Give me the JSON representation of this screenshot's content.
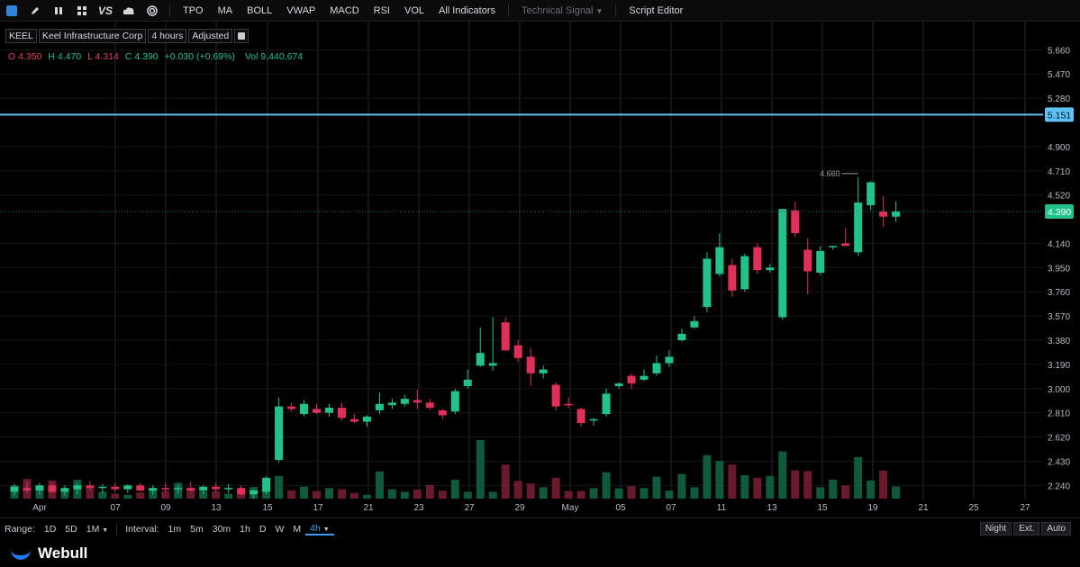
{
  "toolbar": {
    "icons": [
      "chart-type-icon",
      "pencil-icon",
      "candles-icon",
      "grid-icon",
      "vs-icon",
      "cloud-icon",
      "target-icon"
    ],
    "vs_label": "VS",
    "items": [
      "TPO",
      "MA",
      "BOLL",
      "VWAP",
      "MACD",
      "RSI",
      "VOL",
      "All Indicators"
    ],
    "technical_signal": "Technical Signal",
    "script_editor": "Script Editor"
  },
  "symbol": {
    "ticker": "KEEL",
    "name": "Keel Infrastructure Corp",
    "interval": "4 hours",
    "adjust": "Adjusted"
  },
  "ohlc": {
    "o_label": "O",
    "o": "4.350",
    "h_label": "H",
    "h": "4.470",
    "l_label": "L",
    "l": "4.314",
    "c_label": "C",
    "c": "4.390",
    "change": "+0.030 (+0.69%)",
    "vol_label": "Vol",
    "vol": "9,440,674"
  },
  "colors": {
    "up": "#21c38a",
    "down": "#e0305a",
    "up_volume": "#0f5a3a",
    "down_volume": "#6a1a2c",
    "price_line": "#5fc2f5",
    "background": "#000000",
    "grid": "#2a2a2a"
  },
  "chart_data": {
    "type": "candlestick",
    "y_axis_ticks": [
      "5.660",
      "5.470",
      "5.280",
      "4.900",
      "4.710",
      "4.520",
      "4.140",
      "3.950",
      "3.760",
      "3.570",
      "3.380",
      "3.190",
      "3.000",
      "2.810",
      "2.620",
      "2.430",
      "2.240"
    ],
    "ylim": [
      2.2,
      5.74
    ],
    "x_axis_ticks": [
      "Apr",
      "07",
      "09",
      "13",
      "15",
      "17",
      "21",
      "23",
      "27",
      "29",
      "May",
      "05",
      "07",
      "11",
      "13",
      "15",
      "19",
      "21",
      "25",
      "27"
    ],
    "horizontal_line": {
      "value": 5.151,
      "label": "5.151"
    },
    "last_price": {
      "value": 4.39,
      "label": "4.390"
    },
    "high_marker": {
      "value": 4.66,
      "label": "4.660"
    },
    "candles": [
      {
        "o": 2.19,
        "h": 2.25,
        "l": 2.16,
        "c": 2.23,
        "v": 0.35
      },
      {
        "o": 2.22,
        "h": 2.27,
        "l": 2.18,
        "c": 2.2,
        "v": 0.52
      },
      {
        "o": 2.2,
        "h": 2.26,
        "l": 2.17,
        "c": 2.24,
        "v": 0.28
      },
      {
        "o": 2.24,
        "h": 2.26,
        "l": 2.18,
        "c": 2.19,
        "v": 0.48
      },
      {
        "o": 2.19,
        "h": 2.24,
        "l": 2.16,
        "c": 2.22,
        "v": 0.22
      },
      {
        "o": 2.21,
        "h": 2.26,
        "l": 2.17,
        "c": 2.24,
        "v": 0.5
      },
      {
        "o": 2.24,
        "h": 2.27,
        "l": 2.2,
        "c": 2.22,
        "v": 0.28
      },
      {
        "o": 2.22,
        "h": 2.25,
        "l": 2.18,
        "c": 2.23,
        "v": 0.18
      },
      {
        "o": 2.23,
        "h": 2.26,
        "l": 2.19,
        "c": 2.21,
        "v": 0.13
      },
      {
        "o": 2.21,
        "h": 2.25,
        "l": 2.18,
        "c": 2.24,
        "v": 0.1
      },
      {
        "o": 2.24,
        "h": 2.26,
        "l": 2.19,
        "c": 2.2,
        "v": 0.16
      },
      {
        "o": 2.2,
        "h": 2.24,
        "l": 2.17,
        "c": 2.22,
        "v": 0.25
      },
      {
        "o": 2.22,
        "h": 2.26,
        "l": 2.19,
        "c": 2.21,
        "v": 0.2
      },
      {
        "o": 2.21,
        "h": 2.24,
        "l": 2.18,
        "c": 2.22,
        "v": 0.42
      },
      {
        "o": 2.22,
        "h": 2.27,
        "l": 2.19,
        "c": 2.2,
        "v": 0.27
      },
      {
        "o": 2.2,
        "h": 2.24,
        "l": 2.17,
        "c": 2.23,
        "v": 0.2
      },
      {
        "o": 2.23,
        "h": 2.26,
        "l": 2.19,
        "c": 2.21,
        "v": 0.2
      },
      {
        "o": 2.21,
        "h": 2.25,
        "l": 2.18,
        "c": 2.22,
        "v": 0.13
      },
      {
        "o": 2.22,
        "h": 2.24,
        "l": 2.16,
        "c": 2.17,
        "v": 0.18
      },
      {
        "o": 2.17,
        "h": 2.21,
        "l": 2.14,
        "c": 2.2,
        "v": 0.31
      },
      {
        "o": 2.19,
        "h": 2.31,
        "l": 2.17,
        "c": 2.3,
        "v": 0.27
      },
      {
        "o": 2.44,
        "h": 2.93,
        "l": 2.42,
        "c": 2.86,
        "v": 0.6
      },
      {
        "o": 2.86,
        "h": 2.89,
        "l": 2.82,
        "c": 2.84,
        "v": 0.22
      },
      {
        "o": 2.8,
        "h": 2.91,
        "l": 2.78,
        "c": 2.88,
        "v": 0.32
      },
      {
        "o": 2.84,
        "h": 2.88,
        "l": 2.8,
        "c": 2.81,
        "v": 0.2
      },
      {
        "o": 2.81,
        "h": 2.88,
        "l": 2.78,
        "c": 2.85,
        "v": 0.28
      },
      {
        "o": 2.85,
        "h": 2.89,
        "l": 2.75,
        "c": 2.77,
        "v": 0.25
      },
      {
        "o": 2.76,
        "h": 2.8,
        "l": 2.73,
        "c": 2.74,
        "v": 0.15
      },
      {
        "o": 2.74,
        "h": 2.79,
        "l": 2.7,
        "c": 2.78,
        "v": 0.1
      },
      {
        "o": 2.83,
        "h": 2.97,
        "l": 2.8,
        "c": 2.88,
        "v": 0.72
      },
      {
        "o": 2.87,
        "h": 2.92,
        "l": 2.84,
        "c": 2.89,
        "v": 0.25
      },
      {
        "o": 2.88,
        "h": 2.95,
        "l": 2.86,
        "c": 2.92,
        "v": 0.18
      },
      {
        "o": 2.91,
        "h": 2.99,
        "l": 2.84,
        "c": 2.89,
        "v": 0.24
      },
      {
        "o": 2.89,
        "h": 2.92,
        "l": 2.83,
        "c": 2.85,
        "v": 0.36
      },
      {
        "o": 2.83,
        "h": 2.84,
        "l": 2.76,
        "c": 2.79,
        "v": 0.21
      },
      {
        "o": 2.82,
        "h": 3.0,
        "l": 2.8,
        "c": 2.98,
        "v": 0.5
      },
      {
        "o": 3.02,
        "h": 3.15,
        "l": 3.0,
        "c": 3.07,
        "v": 0.18
      },
      {
        "o": 3.18,
        "h": 3.48,
        "l": 3.17,
        "c": 3.28,
        "v": 1.55
      },
      {
        "o": 3.18,
        "h": 3.56,
        "l": 3.14,
        "c": 3.2,
        "v": 0.18
      },
      {
        "o": 3.52,
        "h": 3.56,
        "l": 3.3,
        "c": 3.3,
        "v": 0.9
      },
      {
        "o": 3.34,
        "h": 3.38,
        "l": 3.21,
        "c": 3.24,
        "v": 0.47
      },
      {
        "o": 3.25,
        "h": 3.32,
        "l": 3.02,
        "c": 3.12,
        "v": 0.4
      },
      {
        "o": 3.12,
        "h": 3.18,
        "l": 3.08,
        "c": 3.15,
        "v": 0.3
      },
      {
        "o": 3.03,
        "h": 3.05,
        "l": 2.83,
        "c": 2.86,
        "v": 0.55
      },
      {
        "o": 2.88,
        "h": 2.93,
        "l": 2.85,
        "c": 2.87,
        "v": 0.2
      },
      {
        "o": 2.84,
        "h": 2.85,
        "l": 2.7,
        "c": 2.73,
        "v": 0.2
      },
      {
        "o": 2.76,
        "h": 2.77,
        "l": 2.71,
        "c": 2.76,
        "v": 0.28
      },
      {
        "o": 2.8,
        "h": 3.0,
        "l": 2.78,
        "c": 2.96,
        "v": 0.7
      },
      {
        "o": 3.02,
        "h": 3.05,
        "l": 3.0,
        "c": 3.04,
        "v": 0.27
      },
      {
        "o": 3.1,
        "h": 3.12,
        "l": 3.0,
        "c": 3.04,
        "v": 0.33
      },
      {
        "o": 3.07,
        "h": 3.15,
        "l": 3.06,
        "c": 3.1,
        "v": 0.28
      },
      {
        "o": 3.12,
        "h": 3.26,
        "l": 3.1,
        "c": 3.2,
        "v": 0.58
      },
      {
        "o": 3.2,
        "h": 3.3,
        "l": 3.17,
        "c": 3.25,
        "v": 0.21
      },
      {
        "o": 3.38,
        "h": 3.47,
        "l": 3.37,
        "c": 3.43,
        "v": 0.65
      },
      {
        "o": 3.48,
        "h": 3.57,
        "l": 3.47,
        "c": 3.53,
        "v": 0.3
      },
      {
        "o": 3.64,
        "h": 4.07,
        "l": 3.6,
        "c": 4.02,
        "v": 1.15
      },
      {
        "o": 3.9,
        "h": 4.22,
        "l": 3.88,
        "c": 4.11,
        "v": 1.0
      },
      {
        "o": 3.97,
        "h": 4.02,
        "l": 3.72,
        "c": 3.77,
        "v": 0.9
      },
      {
        "o": 3.78,
        "h": 4.06,
        "l": 3.76,
        "c": 4.04,
        "v": 0.62
      },
      {
        "o": 4.11,
        "h": 4.14,
        "l": 3.9,
        "c": 3.93,
        "v": 0.55
      },
      {
        "o": 3.93,
        "h": 3.98,
        "l": 3.91,
        "c": 3.95,
        "v": 0.6
      },
      {
        "o": 3.56,
        "h": 4.41,
        "l": 3.54,
        "c": 4.41,
        "v": 1.25
      },
      {
        "o": 4.4,
        "h": 4.47,
        "l": 4.19,
        "c": 4.22,
        "v": 0.75
      },
      {
        "o": 4.09,
        "h": 4.18,
        "l": 3.74,
        "c": 3.92,
        "v": 0.73
      },
      {
        "o": 3.91,
        "h": 4.12,
        "l": 3.89,
        "c": 4.08,
        "v": 0.3
      },
      {
        "o": 4.11,
        "h": 4.12,
        "l": 4.09,
        "c": 4.12,
        "v": 0.5
      },
      {
        "o": 4.14,
        "h": 4.26,
        "l": 4.13,
        "c": 4.12,
        "v": 0.35
      },
      {
        "o": 4.07,
        "h": 4.66,
        "l": 4.04,
        "c": 4.46,
        "v": 1.1
      },
      {
        "o": 4.44,
        "h": 4.63,
        "l": 4.4,
        "c": 4.62,
        "v": 0.48
      },
      {
        "o": 4.39,
        "h": 4.51,
        "l": 4.27,
        "c": 4.35,
        "v": 0.74
      },
      {
        "o": 4.35,
        "h": 4.47,
        "l": 4.31,
        "c": 4.39,
        "v": 0.32
      }
    ]
  },
  "bottom": {
    "range_label": "Range:",
    "ranges": [
      "1D",
      "5D",
      "1M"
    ],
    "interval_label": "Interval:",
    "intervals": [
      "1m",
      "5m",
      "30m",
      "1h",
      "D",
      "W",
      "M"
    ],
    "active_interval": "4h",
    "night": "Night",
    "ext": "Ext.",
    "auto": "Auto"
  },
  "brand": "Webull"
}
